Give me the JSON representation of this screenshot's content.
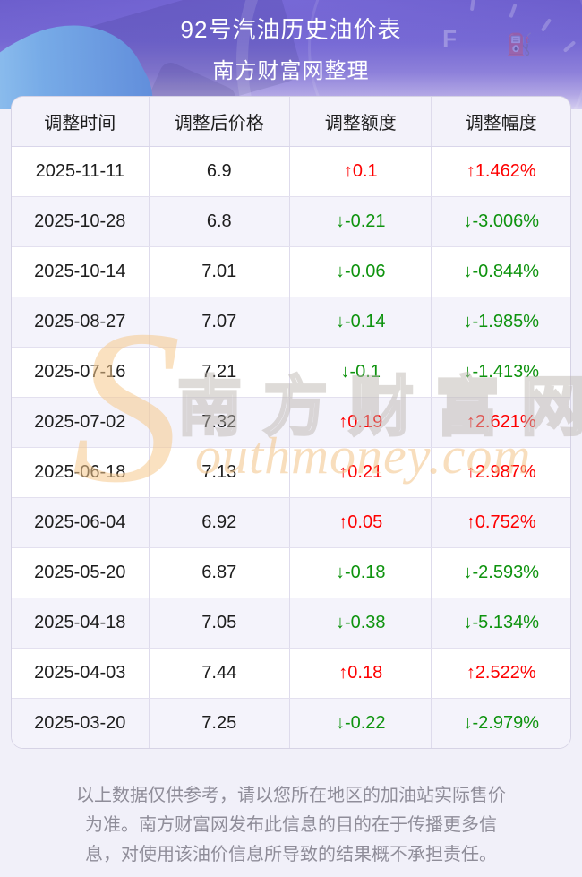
{
  "header": {
    "title": "92号汽油历史油价表",
    "subtitle": "南方财富网整理",
    "gradient_top": "#685ac8",
    "gradient_bottom": "#d5cef0"
  },
  "table": {
    "columns": [
      "调整时间",
      "调整后价格",
      "调整额度",
      "调整幅度"
    ],
    "up_color": "#fe0000",
    "down_color": "#0e930e",
    "rows": [
      {
        "date": "2025-11-11",
        "price": "6.9",
        "change": "↑0.1",
        "pct": "↑1.462%",
        "dir": "up"
      },
      {
        "date": "2025-10-28",
        "price": "6.8",
        "change": "↓-0.21",
        "pct": "↓-3.006%",
        "dir": "down"
      },
      {
        "date": "2025-10-14",
        "price": "7.01",
        "change": "↓-0.06",
        "pct": "↓-0.844%",
        "dir": "down"
      },
      {
        "date": "2025-08-27",
        "price": "7.07",
        "change": "↓-0.14",
        "pct": "↓-1.985%",
        "dir": "down"
      },
      {
        "date": "2025-07-16",
        "price": "7.21",
        "change": "↓-0.1",
        "pct": "↓-1.413%",
        "dir": "down"
      },
      {
        "date": "2025-07-02",
        "price": "7.32",
        "change": "↑0.19",
        "pct": "↑2.621%",
        "dir": "up"
      },
      {
        "date": "2025-06-18",
        "price": "7.13",
        "change": "↑0.21",
        "pct": "↑2.987%",
        "dir": "up"
      },
      {
        "date": "2025-06-04",
        "price": "6.92",
        "change": "↑0.05",
        "pct": "↑0.752%",
        "dir": "up"
      },
      {
        "date": "2025-05-20",
        "price": "6.87",
        "change": "↓-0.18",
        "pct": "↓-2.593%",
        "dir": "down"
      },
      {
        "date": "2025-04-18",
        "price": "7.05",
        "change": "↓-0.38",
        "pct": "↓-5.134%",
        "dir": "down"
      },
      {
        "date": "2025-04-03",
        "price": "7.44",
        "change": "↑0.18",
        "pct": "↑2.522%",
        "dir": "up"
      },
      {
        "date": "2025-03-20",
        "price": "7.25",
        "change": "↓-0.22",
        "pct": "↓-2.979%",
        "dir": "down"
      }
    ]
  },
  "watermark": {
    "s": "S",
    "cn": "南方财富网",
    "en": "outhmoney.com"
  },
  "footer": {
    "disclaimer": "以上数据仅供参考，请以您所在地区的加油站实际售价为准。南方财富网发布此信息的目的在于传播更多信息，对使用该油价信息所导致的结果概不承担责任。"
  },
  "chart_data": {
    "type": "table",
    "title": "92号汽油历史油价表",
    "columns": [
      "调整时间",
      "调整后价格",
      "调整额度",
      "调整幅度"
    ],
    "rows": [
      [
        "2025-11-11",
        6.9,
        0.1,
        "1.462%"
      ],
      [
        "2025-10-28",
        6.8,
        -0.21,
        "-3.006%"
      ],
      [
        "2025-10-14",
        7.01,
        -0.06,
        "-0.844%"
      ],
      [
        "2025-08-27",
        7.07,
        -0.14,
        "-1.985%"
      ],
      [
        "2025-07-16",
        7.21,
        -0.1,
        "-1.413%"
      ],
      [
        "2025-07-02",
        7.32,
        0.19,
        "2.621%"
      ],
      [
        "2025-06-18",
        7.13,
        0.21,
        "2.987%"
      ],
      [
        "2025-06-04",
        6.92,
        0.05,
        "0.752%"
      ],
      [
        "2025-05-20",
        6.87,
        -0.18,
        "-2.593%"
      ],
      [
        "2025-04-18",
        7.05,
        -0.38,
        "-5.134%"
      ],
      [
        "2025-04-03",
        7.44,
        0.18,
        "2.522%"
      ],
      [
        "2025-03-20",
        7.25,
        -0.22,
        "-2.979%"
      ]
    ]
  }
}
